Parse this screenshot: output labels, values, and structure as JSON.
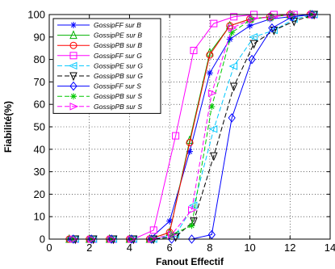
{
  "chart_data": {
    "type": "line",
    "title": "",
    "xlabel": "Fanout Effectif",
    "ylabel": "Fiabilité(%)",
    "xlim": [
      0,
      14
    ],
    "ylim": [
      0,
      100
    ],
    "xticks": [
      "0",
      "2",
      "4",
      "6",
      "8",
      "10",
      "12",
      "14"
    ],
    "yticks": [
      "0",
      "10",
      "20",
      "30",
      "40",
      "50",
      "60",
      "70",
      "80",
      "90",
      "100"
    ],
    "grid": true,
    "legend_position": "top-left",
    "series": [
      {
        "name": "GossipFF sur B",
        "color": "#0000ff",
        "dash": "solid",
        "marker": "asterisk",
        "x": [
          1.0,
          2.0,
          3.0,
          4.0,
          5.0,
          6.0,
          7.0,
          8.0,
          9.0,
          10.0,
          11.0,
          12.0,
          13.0
        ],
        "y": [
          0,
          0,
          0,
          0,
          0,
          8,
          39,
          74,
          89,
          95,
          98,
          99,
          100
        ]
      },
      {
        "name": "GossipPE sur B",
        "color": "#00b000",
        "dash": "solid",
        "marker": "triangle-up",
        "x": [
          1.0,
          2.0,
          3.0,
          4.0,
          5.0,
          6.0,
          7.0,
          8.0,
          9.0,
          10.0,
          11.0,
          12.0,
          13.0
        ],
        "y": [
          0,
          0,
          0,
          0,
          0,
          3,
          44,
          83,
          95,
          98,
          99,
          100,
          100
        ]
      },
      {
        "name": "GossipPB sur B",
        "color": "#ff0000",
        "dash": "solid",
        "marker": "circle",
        "x": [
          1.0,
          2.0,
          3.0,
          4.0,
          5.0,
          6.0,
          7.0,
          8.0,
          9.0,
          10.0,
          11.0,
          12.0,
          13.0
        ],
        "y": [
          0,
          0,
          0,
          0,
          0,
          3,
          43,
          82,
          95,
          98,
          99,
          100,
          100
        ]
      },
      {
        "name": "GossipFF sur G",
        "color": "#ff00ff",
        "dash": "solid",
        "marker": "square",
        "x": [
          1.3,
          2.2,
          3.2,
          4.2,
          5.2,
          6.3,
          7.2,
          8.2,
          9.2,
          10.2,
          11.2,
          12.2,
          13.2
        ],
        "y": [
          0,
          0,
          0,
          0,
          4,
          46,
          84,
          96,
          99,
          100,
          100,
          100,
          100
        ]
      },
      {
        "name": "GossipPE sur G",
        "color": "#00c8ff",
        "dash": "dash",
        "marker": "triangle-left",
        "x": [
          1.3,
          2.2,
          3.2,
          4.2,
          5.2,
          6.3,
          7.2,
          8.2,
          9.2,
          10.2,
          11.2,
          12.2,
          13.2
        ],
        "y": [
          0,
          0,
          0,
          0,
          0,
          2,
          15,
          49,
          77,
          90,
          93,
          98,
          100
        ]
      },
      {
        "name": "GossipPB sur G",
        "color": "#000000",
        "dash": "dash",
        "marker": "triangle-down",
        "x": [
          1.3,
          2.2,
          3.2,
          4.2,
          5.2,
          6.3,
          7.2,
          8.2,
          9.2,
          10.2,
          11.2,
          12.2,
          13.2
        ],
        "y": [
          0,
          0,
          0,
          0,
          0,
          1,
          8,
          37,
          68,
          87,
          93,
          97,
          100
        ]
      },
      {
        "name": "GossipFF sur S",
        "color": "#0000ff",
        "dash": "solid",
        "marker": "diamond",
        "x": [
          1.2,
          2.1,
          3.1,
          4.1,
          5.1,
          6.1,
          7.1,
          8.1,
          9.1,
          10.1,
          11.1,
          12.1,
          13.1
        ],
        "y": [
          0,
          0,
          0,
          0,
          0,
          0,
          0,
          2,
          54,
          80,
          94,
          99,
          100
        ]
      },
      {
        "name": "GossipPB sur S",
        "color": "#00c800",
        "dash": "dash",
        "marker": "star",
        "x": [
          1.2,
          2.1,
          3.1,
          4.1,
          5.1,
          6.1,
          7.1,
          8.1,
          9.1,
          10.1,
          11.1,
          12.1,
          13.1
        ],
        "y": [
          0,
          0,
          0,
          0,
          0,
          2,
          6,
          59,
          92,
          98,
          99,
          100,
          100
        ]
      },
      {
        "name": "GossipPB sur S",
        "color": "#ff00ff",
        "dash": "dash",
        "marker": "triangle-right",
        "x": [
          1.2,
          2.1,
          3.1,
          4.1,
          5.1,
          6.1,
          7.1,
          8.1,
          9.1,
          10.1,
          11.1,
          12.1,
          13.1
        ],
        "y": [
          0,
          0,
          0,
          0,
          0,
          2,
          13,
          65,
          94,
          98,
          99,
          100,
          100
        ]
      }
    ]
  }
}
